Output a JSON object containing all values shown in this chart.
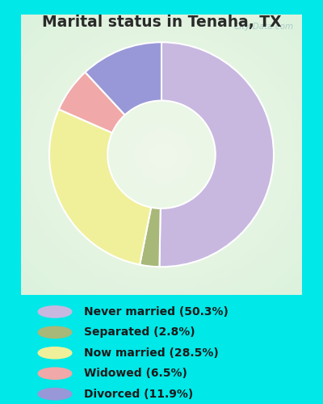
{
  "title": "Marital status in Tenaha, TX",
  "slices": [
    {
      "label": "Never married (50.3%)",
      "value": 50.3,
      "color": "#c8b8e0"
    },
    {
      "label": "Separated (2.8%)",
      "value": 2.8,
      "color": "#a8b878"
    },
    {
      "label": "Now married (28.5%)",
      "value": 28.5,
      "color": "#f0f09a"
    },
    {
      "label": "Widowed (6.5%)",
      "value": 6.5,
      "color": "#f0a8a8"
    },
    {
      "label": "Divorced (11.9%)",
      "value": 11.9,
      "color": "#9898d8"
    }
  ],
  "bg_outer": "#00e8e8",
  "title_color": "#2a2a2a",
  "title_fontsize": 13.5,
  "legend_fontsize": 10,
  "watermark": "City-Data.com",
  "donut_width": 0.52,
  "startangle": 90
}
